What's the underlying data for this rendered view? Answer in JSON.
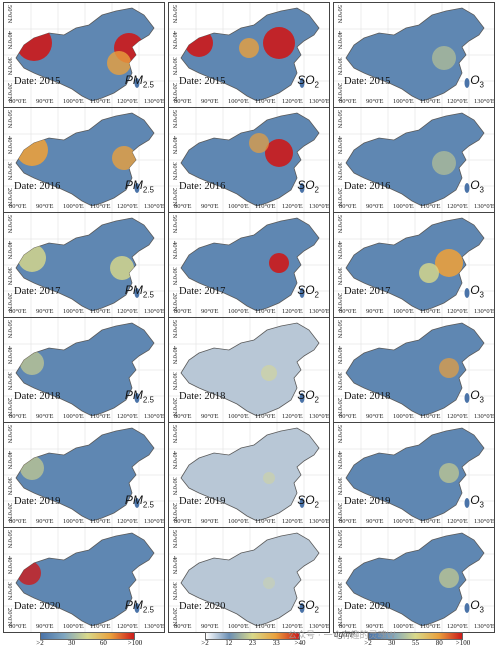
{
  "rows": [
    {
      "date_label": "Date: 2015"
    },
    {
      "date_label": "Date: 2016"
    },
    {
      "date_label": "Date: 2017"
    },
    {
      "date_label": "Date: 2018"
    },
    {
      "date_label": "Date: 2019"
    },
    {
      "date_label": "Date: 2020"
    }
  ],
  "pollutants": [
    {
      "name": "PM",
      "sub": "2.5",
      "ramp": [
        "#4a73a8",
        "#7fa6c0",
        "#d9d98a",
        "#e9a03d",
        "#cc1a1a"
      ],
      "ticks": [
        ">2",
        "30",
        "60",
        ">100"
      ]
    },
    {
      "name": "SO",
      "sub": "2",
      "ramp": [
        "#ffffff",
        "#6b8fb5",
        "#d9d98a",
        "#e9a03d",
        "#cc1a1a"
      ],
      "ticks": [
        ">2",
        "12",
        "23",
        "33",
        ">40"
      ]
    },
    {
      "name": "O",
      "sub": "3",
      "ramp": [
        "#4a73a8",
        "#7fa6c0",
        "#d9d98a",
        "#e9a03d",
        "#cc1a1a"
      ],
      "ticks": [
        ">2",
        "30",
        "55",
        "80",
        ">100"
      ]
    }
  ],
  "lon_labels": [
    "80°0'E",
    "90°0'E",
    "100°0'E",
    "110°0'E",
    "120°0'E",
    "130°0'E"
  ],
  "lat_labels": [
    "50°0'N",
    "40°0'N",
    "30°0'N",
    "20°0'N"
  ],
  "unit": "ug/m³",
  "watermark": "公众号 · 一个有趣的灵魂W",
  "colors": {
    "land_base": "#5f87b2",
    "border": "#5a5a5a"
  }
}
